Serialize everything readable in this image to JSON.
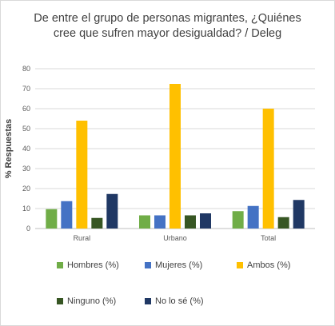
{
  "chart_data": {
    "type": "bar",
    "title_lines": [
      "De entre el grupo de personas migrantes, ¿Quiénes",
      "cree que sufren mayor desigualdad? / Deleg"
    ],
    "xlabel": "",
    "ylabel": "% Respuestas",
    "ylim": [
      0,
      80
    ],
    "yticks": [
      0,
      10,
      20,
      30,
      40,
      50,
      60,
      70,
      80
    ],
    "grid": true,
    "legend_position": "bottom",
    "categories": [
      "Rural",
      "Urbano",
      "Total"
    ],
    "series": [
      {
        "name": "Hombres (%)",
        "color": "#70ad47",
        "values": [
          9.7,
          6.6,
          8.7
        ]
      },
      {
        "name": "Mujeres (%)",
        "color": "#4472c4",
        "values": [
          13.7,
          6.6,
          11.3
        ]
      },
      {
        "name": "Ambos (%)",
        "color": "#ffc000",
        "values": [
          54.0,
          72.4,
          60.0
        ]
      },
      {
        "name": "Ninguno (%)",
        "color": "#375623",
        "values": [
          5.3,
          6.6,
          5.7
        ]
      },
      {
        "name": "No lo sé (%)",
        "color": "#203864",
        "values": [
          17.3,
          7.6,
          14.3
        ]
      }
    ]
  }
}
